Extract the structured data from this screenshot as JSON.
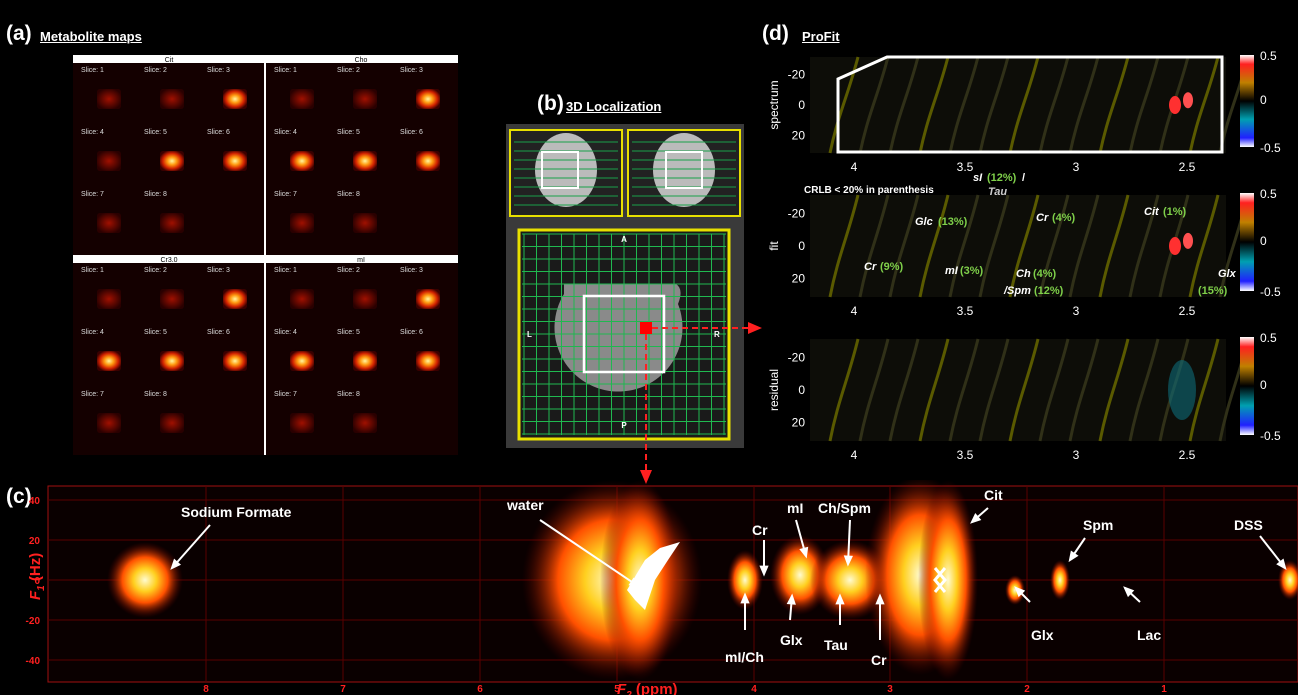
{
  "panels": {
    "a": {
      "letter": "(a)",
      "title": "Metabolite maps",
      "maps": [
        {
          "name": "Cit",
          "slices": [
            "Slice: 1",
            "Slice: 2",
            "Slice: 3",
            "Slice: 4",
            "Slice: 5",
            "Slice: 6",
            "Slice: 7",
            "Slice: 8"
          ]
        },
        {
          "name": "Cho",
          "slices": [
            "Slice: 1",
            "Slice: 2",
            "Slice: 3",
            "Slice: 4",
            "Slice: 5",
            "Slice: 6",
            "Slice: 7",
            "Slice: 8"
          ]
        },
        {
          "name": "Cr3.0",
          "slices": [
            "Slice: 1",
            "Slice: 2",
            "Slice: 3",
            "Slice: 4",
            "Slice: 5",
            "Slice: 6",
            "Slice: 7",
            "Slice: 8"
          ]
        },
        {
          "name": "mI",
          "slices": [
            "Slice: 1",
            "Slice: 2",
            "Slice: 3",
            "Slice: 4",
            "Slice: 5",
            "Slice: 6",
            "Slice: 7",
            "Slice: 8"
          ]
        }
      ]
    },
    "b": {
      "letter": "(b)",
      "title": "3D Localization",
      "orient": {
        "A": "A",
        "L": "L",
        "R": "R",
        "P": "P"
      }
    },
    "c": {
      "letter": "(c)",
      "ylabel_main": "F",
      "ylabel_sub": "1",
      "ylabel_unit": " (Hz)",
      "xlabel_main": "F",
      "xlabel_sub": "2",
      "xlabel_unit": " (ppm)",
      "yticks": [
        "40",
        "20",
        "0",
        "-20",
        "-40"
      ],
      "xticks": [
        "8",
        "7",
        "6",
        "5",
        "4",
        "3",
        "2",
        "1"
      ],
      "annotations": {
        "sodium_formate": "Sodium Formate",
        "water": "water",
        "cr_top": "Cr",
        "mi_top": "mI",
        "ch_spm": "Ch/Spm",
        "cit": "Cit",
        "spm": "Spm",
        "dss": "DSS",
        "mi_ch": "mI/Ch",
        "glx1": "Glx",
        "tau": "Tau",
        "cr_bot": "Cr",
        "glx2": "Glx",
        "lac": "Lac"
      }
    },
    "d": {
      "letter": "(d)",
      "title": "ProFit",
      "rows": [
        "spectrum",
        "fit",
        "residual"
      ],
      "yticks": [
        "-20",
        "0",
        "20"
      ],
      "xticks": [
        "4",
        "3.5",
        "3",
        "2.5"
      ],
      "colorbar_ticks": [
        "0.5",
        "0",
        "-0.5"
      ],
      "crlb_note": "CRLB < 20% in parenthesis",
      "fit_labels": {
        "sl_name": "sI",
        "sl_pct": "(12%)",
        "sl_slash": " /",
        "tau": "Tau",
        "glc_name": "Glc",
        "glc_pct": "(13%)",
        "cr1_name": "Cr",
        "cr1_pct": "(4%)",
        "cit_name": "Cit",
        "cit_pct": "(1%)",
        "cr2_name": "Cr",
        "cr2_pct": "(9%)",
        "mi_name": "mI",
        "mi_pct": "(3%)",
        "ch_name": "Ch",
        "ch_pct": "(4%)",
        "spm_name": "/Spm",
        "spm_pct": "(12%)",
        "glx_name": "Glx",
        "glx_pct": "(15%)"
      }
    }
  },
  "colors": {
    "accent_red": "#ff2020",
    "pct_green": "#7fd04a",
    "fit_white": "#ffffff"
  }
}
